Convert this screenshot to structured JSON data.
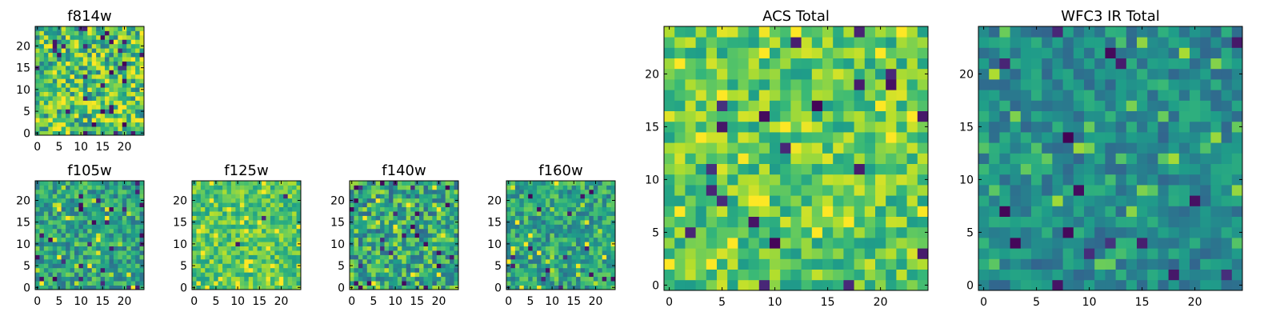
{
  "chart_data": [
    {
      "type": "heatmap",
      "title": "f814w",
      "colormap": "viridis",
      "grid_size": 25,
      "xlim": [
        0,
        24
      ],
      "ylim": [
        0,
        24
      ],
      "xticks": [
        0,
        5,
        10,
        15,
        20
      ],
      "yticks": [
        0,
        5,
        10,
        15,
        20
      ],
      "grid": false
    },
    {
      "type": "heatmap",
      "title": "f105w",
      "colormap": "viridis",
      "grid_size": 25,
      "xlim": [
        0,
        24
      ],
      "ylim": [
        0,
        24
      ],
      "xticks": [
        0,
        5,
        10,
        15,
        20
      ],
      "yticks": [
        0,
        5,
        10,
        15,
        20
      ],
      "grid": false
    },
    {
      "type": "heatmap",
      "title": "f125w",
      "colormap": "viridis",
      "grid_size": 25,
      "xlim": [
        0,
        24
      ],
      "ylim": [
        0,
        24
      ],
      "xticks": [
        0,
        5,
        10,
        15,
        20
      ],
      "yticks": [
        0,
        5,
        10,
        15,
        20
      ],
      "grid": false
    },
    {
      "type": "heatmap",
      "title": "f140w",
      "colormap": "viridis",
      "grid_size": 25,
      "xlim": [
        0,
        24
      ],
      "ylim": [
        0,
        24
      ],
      "xticks": [
        0,
        5,
        10,
        15,
        20
      ],
      "yticks": [
        0,
        5,
        10,
        15,
        20
      ],
      "grid": false
    },
    {
      "type": "heatmap",
      "title": "f160w",
      "colormap": "viridis",
      "grid_size": 25,
      "xlim": [
        0,
        24
      ],
      "ylim": [
        0,
        24
      ],
      "xticks": [
        0,
        5,
        10,
        15,
        20
      ],
      "yticks": [
        0,
        5,
        10,
        15,
        20
      ],
      "grid": false
    },
    {
      "type": "heatmap",
      "title": "ACS Total",
      "colormap": "viridis",
      "grid_size": 25,
      "xlim": [
        0,
        24
      ],
      "ylim": [
        0,
        24
      ],
      "xticks": [
        0,
        5,
        10,
        15,
        20
      ],
      "yticks": [
        0,
        5,
        10,
        15,
        20
      ],
      "grid": false
    },
    {
      "type": "heatmap",
      "title": "WFC3 IR Total",
      "colormap": "viridis",
      "grid_size": 25,
      "xlim": [
        0,
        24
      ],
      "ylim": [
        0,
        24
      ],
      "xticks": [
        0,
        5,
        10,
        15,
        20
      ],
      "yticks": [
        0,
        5,
        10,
        15,
        20
      ],
      "grid": false
    }
  ]
}
